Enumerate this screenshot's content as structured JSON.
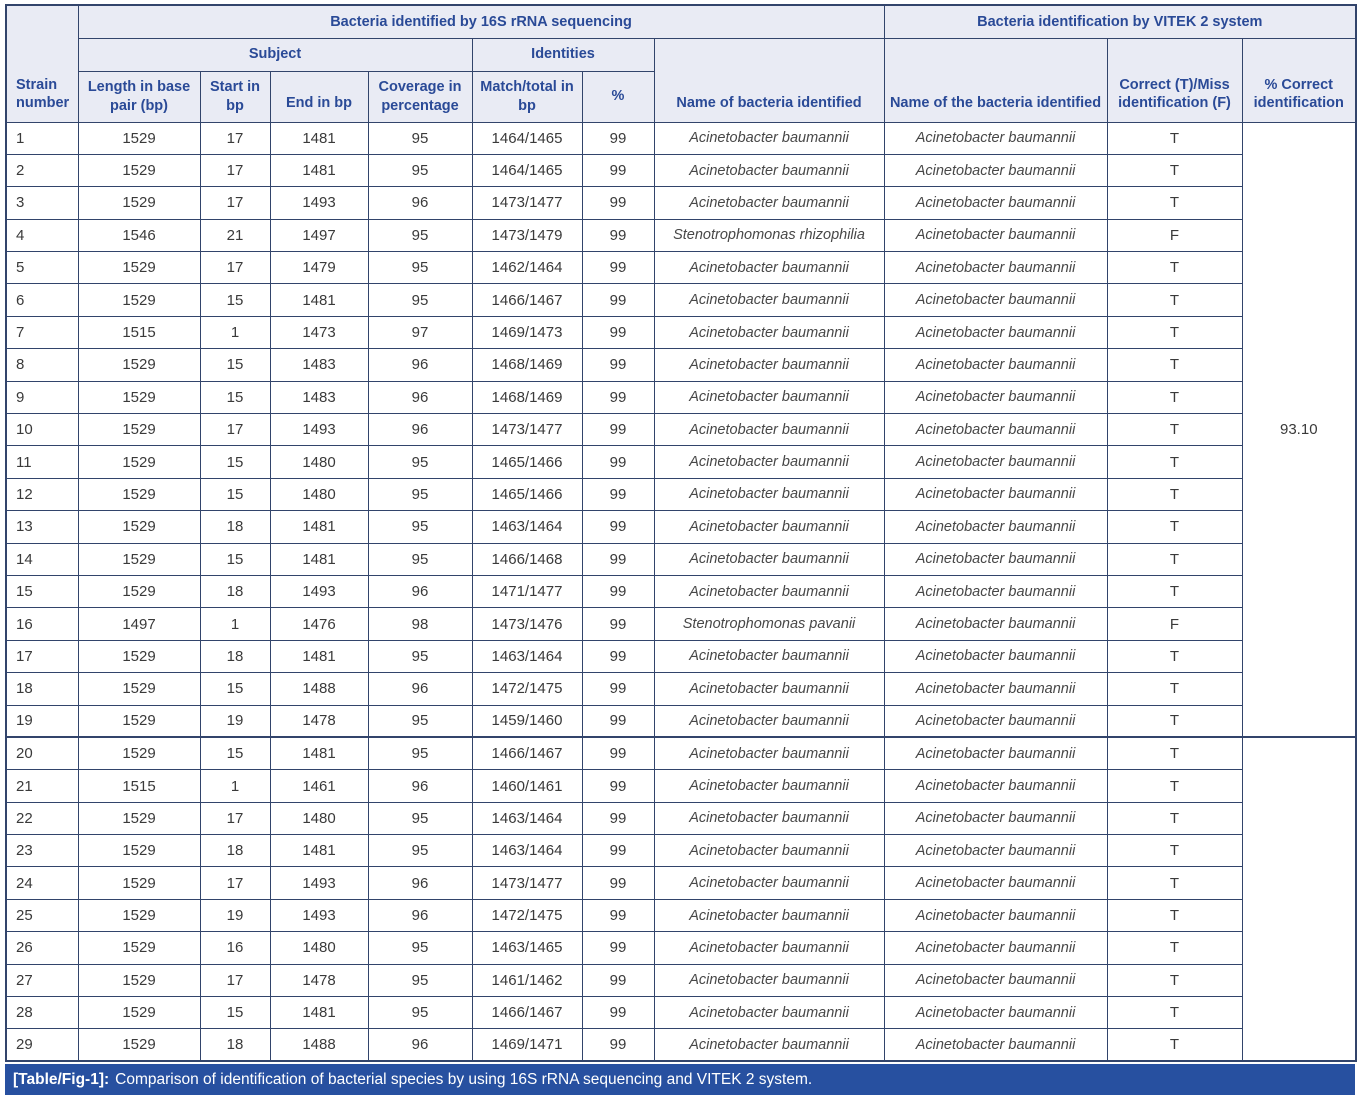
{
  "colors": {
    "border": "#32446b",
    "header_bg": "#e9ebf4",
    "header_text": "#2a4a97",
    "body_text": "#3a3a3a",
    "species_text": "#474747",
    "caption_bg": "#2750a0",
    "caption_text": "#ffffff",
    "page_bg": "#ffffff"
  },
  "table": {
    "group_headers": {
      "sequencing": "Bacteria identified by 16S rRNA sequencing",
      "vitek": "Bacteria identification by VITEK 2 system"
    },
    "subgroup_headers": {
      "subject": "Subject",
      "identities": "Identities"
    },
    "columns": {
      "strain": "Strain number",
      "length": "Length in base pair (bp)",
      "start": "Start in bp",
      "end": "End in bp",
      "coverage": "Coverage in percentage",
      "match": "Match/total in bp",
      "percent": "%",
      "name_16s": "Name of bacteria identified",
      "name_vitek": "Name of the bacteria identified",
      "correct": "Correct (T)/Miss identification (F)",
      "pct_correct": "% Correct identification"
    },
    "pct_correct_value": "93.10",
    "rows": [
      {
        "strain": "1",
        "length": "1529",
        "start": "17",
        "end": "1481",
        "coverage": "95",
        "match": "1464/1465",
        "percent": "99",
        "name_16s": "Acinetobacter baumannii",
        "name_vitek": "Acinetobacter baumannii",
        "correct": "T"
      },
      {
        "strain": "2",
        "length": "1529",
        "start": "17",
        "end": "1481",
        "coverage": "95",
        "match": "1464/1465",
        "percent": "99",
        "name_16s": "Acinetobacter baumannii",
        "name_vitek": "Acinetobacter baumannii",
        "correct": "T"
      },
      {
        "strain": "3",
        "length": "1529",
        "start": "17",
        "end": "1493",
        "coverage": "96",
        "match": "1473/1477",
        "percent": "99",
        "name_16s": "Acinetobacter baumannii",
        "name_vitek": "Acinetobacter baumannii",
        "correct": "T"
      },
      {
        "strain": "4",
        "length": "1546",
        "start": "21",
        "end": "1497",
        "coverage": "95",
        "match": "1473/1479",
        "percent": "99",
        "name_16s": "Stenotrophomonas rhizophilia",
        "name_vitek": "Acinetobacter baumannii",
        "correct": "F"
      },
      {
        "strain": "5",
        "length": "1529",
        "start": "17",
        "end": "1479",
        "coverage": "95",
        "match": "1462/1464",
        "percent": "99",
        "name_16s": "Acinetobacter baumannii",
        "name_vitek": "Acinetobacter baumannii",
        "correct": "T"
      },
      {
        "strain": "6",
        "length": "1529",
        "start": "15",
        "end": "1481",
        "coverage": "95",
        "match": "1466/1467",
        "percent": "99",
        "name_16s": "Acinetobacter baumannii",
        "name_vitek": "Acinetobacter baumannii",
        "correct": "T"
      },
      {
        "strain": "7",
        "length": "1515",
        "start": "1",
        "end": "1473",
        "coverage": "97",
        "match": "1469/1473",
        "percent": "99",
        "name_16s": "Acinetobacter baumannii",
        "name_vitek": "Acinetobacter baumannii",
        "correct": "T"
      },
      {
        "strain": "8",
        "length": "1529",
        "start": "15",
        "end": "1483",
        "coverage": "96",
        "match": "1468/1469",
        "percent": "99",
        "name_16s": "Acinetobacter baumannii",
        "name_vitek": "Acinetobacter baumannii",
        "correct": "T"
      },
      {
        "strain": "9",
        "length": "1529",
        "start": "15",
        "end": "1483",
        "coverage": "96",
        "match": "1468/1469",
        "percent": "99",
        "name_16s": "Acinetobacter baumannii",
        "name_vitek": "Acinetobacter baumannii",
        "correct": "T"
      },
      {
        "strain": "10",
        "length": "1529",
        "start": "17",
        "end": "1493",
        "coverage": "96",
        "match": "1473/1477",
        "percent": "99",
        "name_16s": "Acinetobacter baumannii",
        "name_vitek": "Acinetobacter baumannii",
        "correct": "T"
      },
      {
        "strain": "11",
        "length": "1529",
        "start": "15",
        "end": "1480",
        "coverage": "95",
        "match": "1465/1466",
        "percent": "99",
        "name_16s": "Acinetobacter baumannii",
        "name_vitek": "Acinetobacter baumannii",
        "correct": "T"
      },
      {
        "strain": "12",
        "length": "1529",
        "start": "15",
        "end": "1480",
        "coverage": "95",
        "match": "1465/1466",
        "percent": "99",
        "name_16s": "Acinetobacter baumannii",
        "name_vitek": "Acinetobacter baumannii",
        "correct": "T"
      },
      {
        "strain": "13",
        "length": "1529",
        "start": "18",
        "end": "1481",
        "coverage": "95",
        "match": "1463/1464",
        "percent": "99",
        "name_16s": "Acinetobacter baumannii",
        "name_vitek": "Acinetobacter baumannii",
        "correct": "T"
      },
      {
        "strain": "14",
        "length": "1529",
        "start": "15",
        "end": "1481",
        "coverage": "95",
        "match": "1466/1468",
        "percent": "99",
        "name_16s": "Acinetobacter baumannii",
        "name_vitek": "Acinetobacter baumannii",
        "correct": "T"
      },
      {
        "strain": "15",
        "length": "1529",
        "start": "18",
        "end": "1493",
        "coverage": "96",
        "match": "1471/1477",
        "percent": "99",
        "name_16s": "Acinetobacter baumannii",
        "name_vitek": "Acinetobacter baumannii",
        "correct": "T"
      },
      {
        "strain": "16",
        "length": "1497",
        "start": "1",
        "end": "1476",
        "coverage": "98",
        "match": "1473/1476",
        "percent": "99",
        "name_16s": "Stenotrophomonas pavanii",
        "name_vitek": "Acinetobacter baumannii",
        "correct": "F"
      },
      {
        "strain": "17",
        "length": "1529",
        "start": "18",
        "end": "1481",
        "coverage": "95",
        "match": "1463/1464",
        "percent": "99",
        "name_16s": "Acinetobacter baumannii",
        "name_vitek": "Acinetobacter baumannii",
        "correct": "T"
      },
      {
        "strain": "18",
        "length": "1529",
        "start": "15",
        "end": "1488",
        "coverage": "96",
        "match": "1472/1475",
        "percent": "99",
        "name_16s": "Acinetobacter baumannii",
        "name_vitek": "Acinetobacter baumannii",
        "correct": "T"
      },
      {
        "strain": "19",
        "length": "1529",
        "start": "19",
        "end": "1478",
        "coverage": "95",
        "match": "1459/1460",
        "percent": "99",
        "name_16s": "Acinetobacter baumannii",
        "name_vitek": "Acinetobacter baumannii",
        "correct": "T"
      },
      {
        "strain": "20",
        "length": "1529",
        "start": "15",
        "end": "1481",
        "coverage": "95",
        "match": "1466/1467",
        "percent": "99",
        "name_16s": "Acinetobacter baumannii",
        "name_vitek": "Acinetobacter baumannii",
        "correct": "T"
      },
      {
        "strain": "21",
        "length": "1515",
        "start": "1",
        "end": "1461",
        "coverage": "96",
        "match": "1460/1461",
        "percent": "99",
        "name_16s": "Acinetobacter baumannii",
        "name_vitek": "Acinetobacter baumannii",
        "correct": "T"
      },
      {
        "strain": "22",
        "length": "1529",
        "start": "17",
        "end": "1480",
        "coverage": "95",
        "match": "1463/1464",
        "percent": "99",
        "name_16s": "Acinetobacter baumannii",
        "name_vitek": "Acinetobacter baumannii",
        "correct": "T"
      },
      {
        "strain": "23",
        "length": "1529",
        "start": "18",
        "end": "1481",
        "coverage": "95",
        "match": "1463/1464",
        "percent": "99",
        "name_16s": "Acinetobacter baumannii",
        "name_vitek": "Acinetobacter baumannii",
        "correct": "T"
      },
      {
        "strain": "24",
        "length": "1529",
        "start": "17",
        "end": "1493",
        "coverage": "96",
        "match": "1473/1477",
        "percent": "99",
        "name_16s": "Acinetobacter baumannii",
        "name_vitek": "Acinetobacter baumannii",
        "correct": "T"
      },
      {
        "strain": "25",
        "length": "1529",
        "start": "19",
        "end": "1493",
        "coverage": "96",
        "match": "1472/1475",
        "percent": "99",
        "name_16s": "Acinetobacter baumannii",
        "name_vitek": "Acinetobacter baumannii",
        "correct": "T"
      },
      {
        "strain": "26",
        "length": "1529",
        "start": "16",
        "end": "1480",
        "coverage": "95",
        "match": "1463/1465",
        "percent": "99",
        "name_16s": "Acinetobacter baumannii",
        "name_vitek": "Acinetobacter baumannii",
        "correct": "T"
      },
      {
        "strain": "27",
        "length": "1529",
        "start": "17",
        "end": "1478",
        "coverage": "95",
        "match": "1461/1462",
        "percent": "99",
        "name_16s": "Acinetobacter baumannii",
        "name_vitek": "Acinetobacter baumannii",
        "correct": "T"
      },
      {
        "strain": "28",
        "length": "1529",
        "start": "15",
        "end": "1481",
        "coverage": "95",
        "match": "1466/1467",
        "percent": "99",
        "name_16s": "Acinetobacter baumannii",
        "name_vitek": "Acinetobacter baumannii",
        "correct": "T"
      },
      {
        "strain": "29",
        "length": "1529",
        "start": "18",
        "end": "1488",
        "coverage": "96",
        "match": "1469/1471",
        "percent": "99",
        "name_16s": "Acinetobacter baumannii",
        "name_vitek": "Acinetobacter baumannii",
        "correct": "T"
      }
    ]
  },
  "caption": {
    "label": "[Table/Fig-1]:",
    "text": "Comparison of identification of bacterial species by using 16S rRNA sequencing and VITEK 2 system."
  }
}
